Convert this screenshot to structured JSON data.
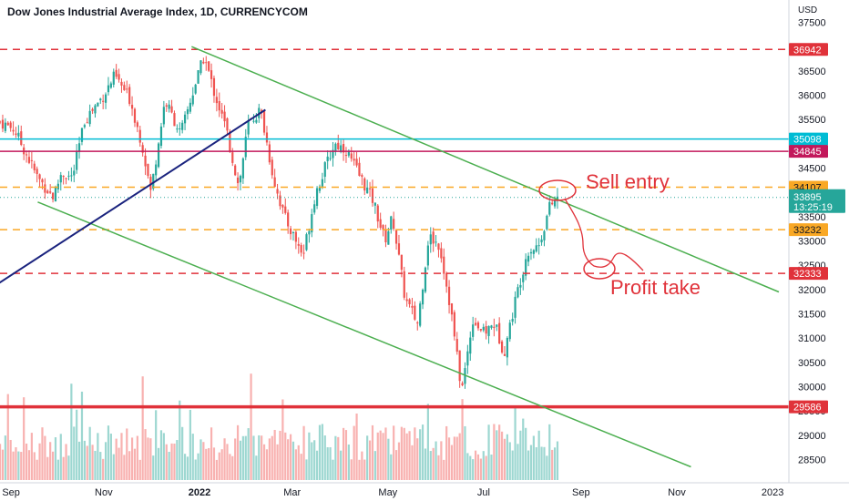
{
  "header": {
    "title": "Dow Jones Industrial Average Index, 1D, CURRENCYCOM",
    "currency": "USD"
  },
  "chart_data": {
    "type": "candlestick",
    "x_tick_labels": [
      "Sep",
      "Nov",
      "2022",
      "Mar",
      "May",
      "Jul",
      "Sep",
      "Nov",
      "2023"
    ],
    "y_tick_labels": [
      "37500",
      "37000",
      "36500",
      "36000",
      "35500",
      "35000",
      "34500",
      "34000",
      "33500",
      "33000",
      "32500",
      "32000",
      "31500",
      "31000",
      "30500",
      "30000",
      "29500",
      "29000",
      "28500"
    ],
    "ylim": [
      28300,
      37650
    ],
    "grid": false,
    "close_path": [
      [
        "2021-08-27",
        35450
      ],
      [
        "2021-09-05",
        35300
      ],
      [
        "2021-09-20",
        34300
      ],
      [
        "2021-09-30",
        33900
      ],
      [
        "2021-10-05",
        34400
      ],
      [
        "2021-10-12",
        34300
      ],
      [
        "2021-10-20",
        35500
      ],
      [
        "2021-11-01",
        36000
      ],
      [
        "2021-11-08",
        36400
      ],
      [
        "2021-11-18",
        35900
      ],
      [
        "2021-11-26",
        34900
      ],
      [
        "2021-12-01",
        34000
      ],
      [
        "2021-12-10",
        35900
      ],
      [
        "2021-12-20",
        35200
      ],
      [
        "2021-12-30",
        36300
      ],
      [
        "2022-01-04",
        36800
      ],
      [
        "2022-01-10",
        36100
      ],
      [
        "2022-01-18",
        35300
      ],
      [
        "2022-01-26",
        34100
      ],
      [
        "2022-02-01",
        35400
      ],
      [
        "2022-02-09",
        35700
      ],
      [
        "2022-02-17",
        34300
      ],
      [
        "2022-02-24",
        33500
      ],
      [
        "2022-03-08",
        32700
      ],
      [
        "2022-03-16",
        34000
      ],
      [
        "2022-03-28",
        35000
      ],
      [
        "2022-04-04",
        34900
      ],
      [
        "2022-04-12",
        34400
      ],
      [
        "2022-04-22",
        33800
      ],
      [
        "2022-04-29",
        33000
      ],
      [
        "2022-05-04",
        33500
      ],
      [
        "2022-05-12",
        31800
      ],
      [
        "2022-05-20",
        31300
      ],
      [
        "2022-05-27",
        33100
      ],
      [
        "2022-06-03",
        32900
      ],
      [
        "2022-06-10",
        31600
      ],
      [
        "2022-06-17",
        29900
      ],
      [
        "2022-06-24",
        31400
      ],
      [
        "2022-07-01",
        31100
      ],
      [
        "2022-07-08",
        31300
      ],
      [
        "2022-07-14",
        30700
      ],
      [
        "2022-07-22",
        31900
      ],
      [
        "2022-07-29",
        32800
      ],
      [
        "2022-08-05",
        32900
      ],
      [
        "2022-08-12",
        33700
      ],
      [
        "2022-08-17",
        33895
      ]
    ],
    "price_levels": [
      {
        "label": "36942",
        "value": 36942,
        "style": "dashed",
        "color": "#e0323a"
      },
      {
        "label": "35098",
        "value": 35098,
        "style": "solid",
        "color": "#00bcd4"
      },
      {
        "label": "34845",
        "value": 34845,
        "style": "solid",
        "color": "#c2185b"
      },
      {
        "label": "34107",
        "value": 34107,
        "style": "dashed",
        "color": "#f9a825"
      },
      {
        "label": "33232",
        "value": 33232,
        "style": "dashed",
        "color": "#f9a825"
      },
      {
        "label": "32333",
        "value": 32333,
        "style": "dashed",
        "color": "#e0323a"
      },
      {
        "label": "29586",
        "value": 29586,
        "style": "solid-thick",
        "color": "#e0323a"
      }
    ],
    "current_price": {
      "value": 33895,
      "label": "33895",
      "countdown": "13:25:19",
      "color": "#26a69a"
    },
    "trendlines": [
      {
        "name": "upper-channel",
        "color": "#4caf50",
        "from": [
          "2021-12-27",
          37000
        ],
        "to": [
          "2023-01-05",
          31950
        ]
      },
      {
        "name": "lower-channel",
        "color": "#4caf50",
        "from": [
          "2021-09-20",
          33800
        ],
        "to": [
          "2022-11-10",
          28350
        ]
      },
      {
        "name": "uptrend",
        "color": "#1a237e",
        "from": [
          "2021-08-20",
          32000
        ],
        "to": [
          "2022-02-12",
          35700
        ]
      }
    ],
    "annotations": [
      {
        "text": "Sell entry",
        "color": "#e0323a"
      },
      {
        "text": "Profit take",
        "color": "#e0323a"
      }
    ]
  }
}
